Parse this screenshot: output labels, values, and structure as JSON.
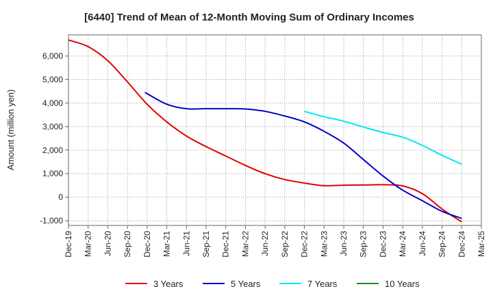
{
  "chart_data": {
    "type": "line",
    "title": "[6440]  Trend of Mean of 12-Month Moving Sum of Ordinary Incomes",
    "xlabel": "",
    "ylabel": "Amount (million yen)",
    "ylim": [
      -1200,
      6900
    ],
    "yticks": [
      -1000,
      0,
      1000,
      2000,
      3000,
      4000,
      5000,
      6000
    ],
    "ytick_labels": [
      "-1,000",
      "0",
      "1,000",
      "2,000",
      "3,000",
      "4,000",
      "5,000",
      "6,000"
    ],
    "x_ticks": [
      "Dec-19",
      "Mar-20",
      "Jun-20",
      "Sep-20",
      "Dec-20",
      "Mar-21",
      "Jun-21",
      "Sep-21",
      "Dec-21",
      "Mar-22",
      "Jun-22",
      "Sep-22",
      "Dec-22",
      "Mar-23",
      "Jun-23",
      "Sep-23",
      "Dec-23",
      "Mar-24",
      "Jun-24",
      "Sep-24",
      "Dec-24",
      "Mar-25"
    ],
    "grid": true,
    "legend_position": "bottom",
    "series": [
      {
        "name": "3 Years",
        "color": "#e00000",
        "points": [
          [
            0,
            6680
          ],
          [
            1,
            6400
          ],
          [
            2,
            5800
          ],
          [
            3,
            4900
          ],
          [
            4,
            3950
          ],
          [
            5,
            3200
          ],
          [
            6,
            2600
          ],
          [
            7,
            2150
          ],
          [
            8,
            1750
          ],
          [
            9,
            1350
          ],
          [
            10,
            1000
          ],
          [
            11,
            750
          ],
          [
            12,
            600
          ],
          [
            13,
            490
          ],
          [
            14,
            510
          ],
          [
            15,
            520
          ],
          [
            16,
            530
          ],
          [
            17,
            480
          ],
          [
            18,
            150
          ],
          [
            19,
            -500
          ],
          [
            20,
            -1050
          ]
        ]
      },
      {
        "name": "5 Years",
        "color": "#0000c8",
        "points": [
          [
            3.9,
            4450
          ],
          [
            4,
            4400
          ],
          [
            5,
            3950
          ],
          [
            6,
            3760
          ],
          [
            7,
            3760
          ],
          [
            8,
            3760
          ],
          [
            9,
            3750
          ],
          [
            10,
            3650
          ],
          [
            11,
            3450
          ],
          [
            12,
            3200
          ],
          [
            13,
            2800
          ],
          [
            14,
            2300
          ],
          [
            15,
            1600
          ],
          [
            16,
            900
          ],
          [
            17,
            300
          ],
          [
            18,
            -150
          ],
          [
            19,
            -600
          ],
          [
            20,
            -900
          ]
        ]
      },
      {
        "name": "7 Years",
        "color": "#00e6f0",
        "points": [
          [
            12,
            3650
          ],
          [
            13,
            3420
          ],
          [
            14,
            3230
          ],
          [
            15,
            2980
          ],
          [
            16,
            2750
          ],
          [
            17,
            2550
          ],
          [
            18,
            2200
          ],
          [
            19,
            1780
          ],
          [
            20,
            1400
          ]
        ]
      },
      {
        "name": "10 Years",
        "color": "#228b22",
        "points": []
      }
    ]
  }
}
